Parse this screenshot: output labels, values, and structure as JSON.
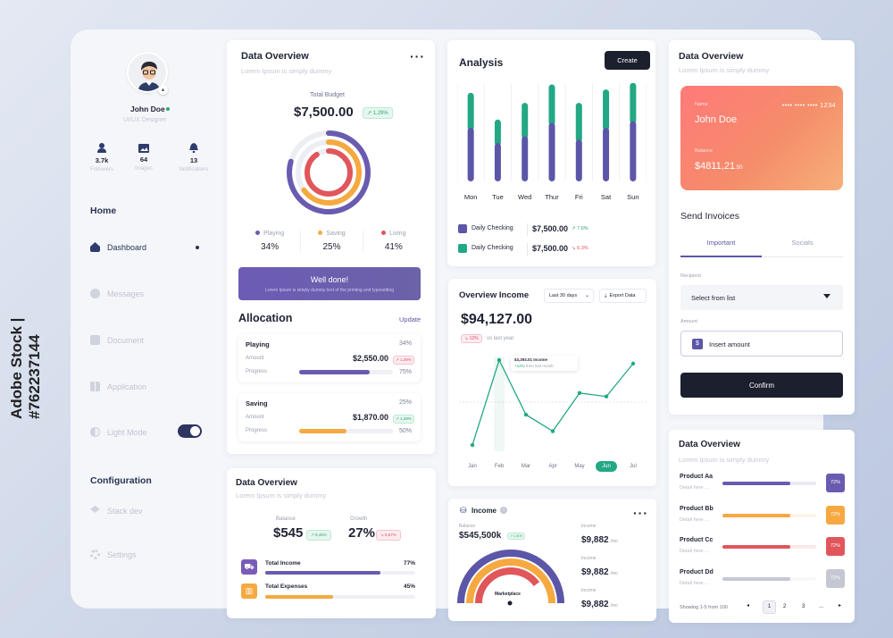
{
  "watermark": "Adobe Stock | #762237144",
  "profile": {
    "name": "John Doe",
    "role": "UI/UX Designer",
    "stats": [
      {
        "value": "3.7k",
        "label": "Followers"
      },
      {
        "value": "64",
        "label": "Images"
      },
      {
        "value": "13",
        "label": "Notifications"
      }
    ]
  },
  "sidebar": {
    "section_home": "Home",
    "items": [
      {
        "label": "Dashboard"
      },
      {
        "label": "Messages"
      },
      {
        "label": "Document"
      },
      {
        "label": "Application"
      },
      {
        "label": "Light Mode"
      }
    ],
    "section_config": "Configuration",
    "config_items": [
      {
        "label": "Stack dev"
      },
      {
        "label": "Settings"
      }
    ]
  },
  "overview1": {
    "title": "Data Overview",
    "subtitle": "Lorem Ipsum is simply dummy",
    "budget_label": "Total Budget",
    "budget_value": "$7,500.00",
    "budget_change": "↗ 1,29%",
    "legend": [
      {
        "label": "Playing",
        "value": "34%",
        "color": "#6a5bb0"
      },
      {
        "label": "Saving",
        "value": "25%",
        "color": "#f5a940"
      },
      {
        "label": "Living",
        "value": "41%",
        "color": "#e0565b"
      }
    ],
    "rings": [
      {
        "name": "Playing",
        "fraction": 0.34,
        "color": "#6a5bb0"
      },
      {
        "name": "Saving",
        "fraction": 0.25,
        "color": "#f5a940"
      },
      {
        "name": "Living",
        "fraction": 0.41,
        "color": "#e0565b"
      }
    ],
    "banner_title": "Well done!",
    "banner_text": "Lorem Ipsum is simply dummy text of the printing and typesetting"
  },
  "allocation": {
    "title": "Allocation",
    "update": "Update",
    "items": [
      {
        "name": "Playing",
        "pct": "34%",
        "amount_label": "Amount",
        "amount": "$2,550.00",
        "change": "↗ 1,29%",
        "progress_label": "Progress",
        "progress": "75%",
        "progress_value": 0.75,
        "color": "#6a5bb0"
      },
      {
        "name": "Saving",
        "pct": "25%",
        "amount_label": "Amount",
        "amount": "$1,870.00",
        "change": "↗ 1,29%",
        "progress_label": "Progress",
        "progress": "50%",
        "progress_value": 0.5,
        "color": "#f5a940"
      }
    ]
  },
  "overview2": {
    "title": "Data Overview",
    "subtitle": "Lorem Ipsum is simply dummy",
    "balance_label": "Balance",
    "balance": "$545",
    "balance_change": "↗ 9,45%",
    "growth_label": "Growth",
    "growth": "27%",
    "growth_change": "↘ 5,67%",
    "rows": [
      {
        "label": "Total Income",
        "pct": "77%",
        "value": 0.77,
        "color": "#6a5bb0",
        "bg": "#7a5bb8"
      },
      {
        "label": "Total Expenses",
        "pct": "45%",
        "value": 0.45,
        "color": "#f5a940",
        "bg": "#f5a940"
      }
    ]
  },
  "analysis": {
    "title": "Analysis",
    "create": "Create",
    "days": [
      "Mon",
      "Tue",
      "Wed",
      "Thur",
      "Fri",
      "Sat",
      "Sun"
    ],
    "legend": [
      {
        "label": "Daily Checking",
        "value": "$7,500.00",
        "change": "↗ 7.6%",
        "kind": "green",
        "color": "#5c56a8"
      },
      {
        "label": "Daily Checking",
        "value": "$7,500.00",
        "change": "↘ 6.3%",
        "kind": "red",
        "color": "#22a884"
      }
    ]
  },
  "income_overview": {
    "title": "Overview Income",
    "range": "Last 30 days",
    "export": "Export Data",
    "value": "$94,127.00",
    "change": "↘ 12%",
    "change_text": "vs last year",
    "tooltip_value": "$3,293.01 Income",
    "tooltip_change": "+12%",
    "tooltip_text": "from last month",
    "months": [
      "Jan",
      "Feb",
      "Mar",
      "Apr",
      "May",
      "Jun",
      "Jul"
    ],
    "active_month": "Jun"
  },
  "income": {
    "title": "Income",
    "balance_label": "Balance",
    "balance": "$545,500k",
    "balance_change": "↗ 1,01%",
    "marketplace": "Marketplace",
    "values": [
      {
        "label": "Income",
        "value": "$9,882",
        "unit": "/mo"
      },
      {
        "label": "Income",
        "value": "$9,882",
        "unit": "/mo"
      },
      {
        "label": "Income",
        "value": "$9,882",
        "unit": "/mo"
      }
    ]
  },
  "card_panel": {
    "title": "Data Overview",
    "subtitle": "Lorem Ipsum is simply dummy",
    "card_name_label": "Name",
    "card_name": "John Doe",
    "card_number": "•••• •••• •••• 1234",
    "card_balance_label": "Balance",
    "card_balance": "$4811,21",
    "card_balance_cents": ".50",
    "invoices_title": "Send Invoices",
    "tab_important": "Important",
    "tab_socials": "Socials",
    "recipient_label": "Recipient",
    "recipient_placeholder": "Select from list",
    "amount_label": "Amount",
    "amount_placeholder": "Insert amount",
    "confirm": "Confirm"
  },
  "products": {
    "title": "Data Overview",
    "subtitle": "Lorem Ipsum is simply dummy",
    "items": [
      {
        "name": "Product Aa",
        "detail": "Detail here ...",
        "pct": "72%",
        "value": 0.72,
        "color": "#6a5bb0"
      },
      {
        "name": "Product Bb",
        "detail": "Detail here ...",
        "pct": "72%",
        "value": 0.72,
        "color": "#f5a940"
      },
      {
        "name": "Product Cc",
        "detail": "Detail here ...",
        "pct": "72%",
        "value": 0.72,
        "color": "#e0565b"
      },
      {
        "name": "Product Dd",
        "detail": "Detail here ...",
        "pct": "72%",
        "value": 0.72,
        "color": "#c5c8d2"
      }
    ],
    "footer": "Showing 1-5 from 100",
    "pages": [
      "1",
      "2",
      "3",
      "..."
    ]
  },
  "chart_data": [
    {
      "type": "bar",
      "categories": [
        "Mon",
        "Tue",
        "Wed",
        "Thur",
        "Fri",
        "Sat",
        "Sun"
      ],
      "series": [
        {
          "name": "Daily Checking",
          "values": [
            53,
            37,
            47,
            58,
            47,
            55,
            59
          ]
        },
        {
          "name": "Daily Checking",
          "values": [
            32,
            23,
            27,
            35,
            25,
            32,
            36
          ]
        }
      ],
      "ylim": [
        0,
        100
      ]
    },
    {
      "type": "line",
      "categories": [
        "Jan",
        "Feb",
        "Mar",
        "Apr",
        "May",
        "Jun",
        "Jul"
      ],
      "series": [
        {
          "values": [
            2,
            100,
            37,
            18,
            62,
            58,
            96
          ]
        }
      ],
      "ylim": [
        0,
        100
      ]
    }
  ]
}
